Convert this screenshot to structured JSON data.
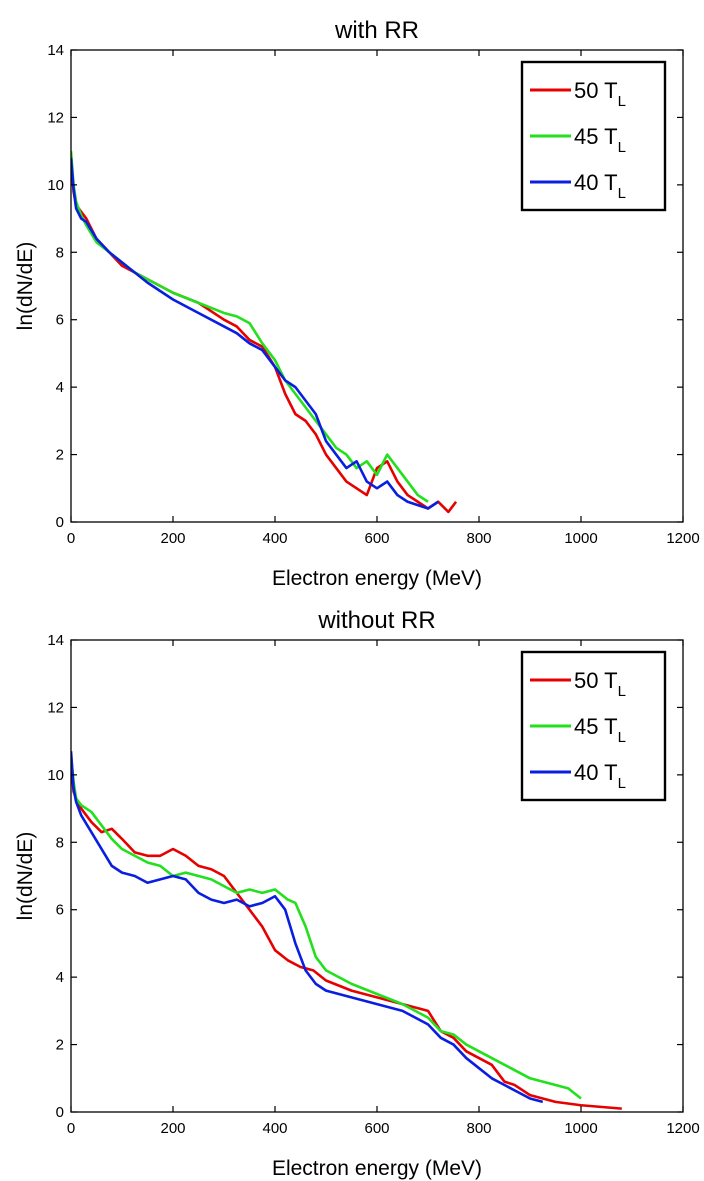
{
  "chart_data": [
    {
      "type": "line",
      "title": "with RR",
      "xlabel": "Electron energy (MeV)",
      "ylabel": "ln(dN/dE)",
      "xlim": [
        0,
        1200
      ],
      "ylim": [
        0,
        14
      ],
      "xticks": [
        "0",
        "200",
        "400",
        "600",
        "800",
        "1000",
        "1200"
      ],
      "yticks": [
        "0",
        "2",
        "4",
        "6",
        "8",
        "10",
        "12",
        "14"
      ],
      "grid": false,
      "legend_position": "top-right",
      "series": [
        {
          "name_main": "50 T",
          "name_sub": "L",
          "color": "#e60000",
          "x": [
            0,
            5,
            10,
            20,
            30,
            50,
            75,
            100,
            125,
            150,
            200,
            250,
            300,
            325,
            350,
            375,
            400,
            420,
            440,
            460,
            480,
            500,
            520,
            540,
            560,
            580,
            600,
            620,
            640,
            660,
            680,
            700,
            720,
            740,
            755
          ],
          "y": [
            10.8,
            9.8,
            9.4,
            9.2,
            9.0,
            8.4,
            8.0,
            7.6,
            7.4,
            7.2,
            6.8,
            6.5,
            6.0,
            5.8,
            5.4,
            5.2,
            4.6,
            3.8,
            3.2,
            3.0,
            2.6,
            2.0,
            1.6,
            1.2,
            1.0,
            0.8,
            1.6,
            1.8,
            1.2,
            0.8,
            0.6,
            0.4,
            0.6,
            0.3,
            0.6
          ]
        },
        {
          "name_main": "45 T",
          "name_sub": "L",
          "color": "#22e01e",
          "x": [
            0,
            5,
            10,
            20,
            30,
            50,
            75,
            100,
            125,
            150,
            200,
            250,
            300,
            325,
            350,
            375,
            400,
            420,
            440,
            460,
            480,
            500,
            520,
            540,
            560,
            580,
            600,
            620,
            640,
            660,
            680,
            700
          ],
          "y": [
            11.0,
            10.0,
            9.5,
            9.1,
            8.8,
            8.3,
            8.0,
            7.7,
            7.4,
            7.2,
            6.8,
            6.5,
            6.2,
            6.1,
            5.9,
            5.3,
            4.8,
            4.2,
            3.8,
            3.4,
            3.0,
            2.6,
            2.2,
            2.0,
            1.6,
            1.8,
            1.4,
            2.0,
            1.6,
            1.2,
            0.8,
            0.6
          ]
        },
        {
          "name_main": "40 T",
          "name_sub": "L",
          "color": "#0a1ee0",
          "x": [
            0,
            5,
            10,
            20,
            30,
            50,
            75,
            100,
            125,
            150,
            200,
            250,
            300,
            325,
            350,
            375,
            400,
            420,
            440,
            460,
            480,
            500,
            520,
            540,
            560,
            580,
            600,
            620,
            640,
            660,
            680,
            700,
            720
          ],
          "y": [
            10.8,
            9.9,
            9.3,
            9.0,
            8.9,
            8.4,
            8.0,
            7.7,
            7.4,
            7.1,
            6.6,
            6.2,
            5.8,
            5.6,
            5.3,
            5.1,
            4.6,
            4.2,
            4.0,
            3.6,
            3.2,
            2.4,
            2.0,
            1.6,
            1.8,
            1.2,
            1.0,
            1.2,
            0.8,
            0.6,
            0.5,
            0.4,
            0.6
          ]
        }
      ]
    },
    {
      "type": "line",
      "title": "without RR",
      "xlabel": "Electron energy (MeV)",
      "ylabel": "ln(dN/dE)",
      "xlim": [
        0,
        1200
      ],
      "ylim": [
        0,
        14
      ],
      "xticks": [
        "0",
        "200",
        "400",
        "600",
        "800",
        "1000",
        "1200"
      ],
      "yticks": [
        "0",
        "2",
        "4",
        "6",
        "8",
        "10",
        "12",
        "14"
      ],
      "grid": false,
      "legend_position": "top-right",
      "series": [
        {
          "name_main": "50 T",
          "name_sub": "L",
          "color": "#e60000",
          "x": [
            0,
            5,
            10,
            20,
            40,
            60,
            80,
            100,
            125,
            150,
            175,
            200,
            225,
            250,
            275,
            300,
            325,
            350,
            375,
            400,
            425,
            450,
            475,
            500,
            550,
            600,
            650,
            700,
            725,
            750,
            775,
            800,
            825,
            850,
            870,
            900,
            950,
            1000,
            1080
          ],
          "y": [
            10.4,
            9.5,
            9.3,
            9.0,
            8.6,
            8.3,
            8.4,
            8.1,
            7.7,
            7.6,
            7.6,
            7.8,
            7.6,
            7.3,
            7.2,
            7.0,
            6.5,
            6.0,
            5.5,
            4.8,
            4.5,
            4.3,
            4.2,
            3.9,
            3.6,
            3.4,
            3.2,
            3.0,
            2.4,
            2.2,
            1.8,
            1.6,
            1.4,
            0.9,
            0.8,
            0.5,
            0.3,
            0.2,
            0.1
          ]
        },
        {
          "name_main": "45 T",
          "name_sub": "L",
          "color": "#22e01e",
          "x": [
            0,
            5,
            10,
            20,
            40,
            60,
            80,
            100,
            125,
            150,
            175,
            200,
            225,
            250,
            275,
            300,
            325,
            350,
            375,
            400,
            425,
            440,
            460,
            480,
            500,
            550,
            600,
            650,
            700,
            725,
            750,
            775,
            800,
            825,
            850,
            875,
            900,
            925,
            950,
            975,
            1000
          ],
          "y": [
            10.6,
            9.8,
            9.3,
            9.1,
            8.9,
            8.5,
            8.1,
            7.8,
            7.6,
            7.4,
            7.3,
            7.0,
            7.1,
            7.0,
            6.9,
            6.7,
            6.5,
            6.6,
            6.5,
            6.6,
            6.3,
            6.2,
            5.5,
            4.6,
            4.2,
            3.8,
            3.5,
            3.2,
            2.8,
            2.4,
            2.3,
            2.0,
            1.8,
            1.6,
            1.4,
            1.2,
            1.0,
            0.9,
            0.8,
            0.7,
            0.4
          ]
        },
        {
          "name_main": "40 T",
          "name_sub": "L",
          "color": "#0a1ee0",
          "x": [
            0,
            5,
            10,
            20,
            40,
            60,
            80,
            100,
            125,
            150,
            175,
            200,
            225,
            250,
            275,
            300,
            325,
            350,
            375,
            400,
            410,
            420,
            440,
            460,
            480,
            500,
            550,
            600,
            650,
            700,
            725,
            750,
            775,
            800,
            825,
            850,
            875,
            900,
            925
          ],
          "y": [
            10.7,
            9.6,
            9.2,
            8.8,
            8.3,
            7.8,
            7.3,
            7.1,
            7.0,
            6.8,
            6.9,
            7.0,
            6.9,
            6.5,
            6.3,
            6.2,
            6.3,
            6.1,
            6.2,
            6.4,
            6.2,
            6.0,
            5.0,
            4.2,
            3.8,
            3.6,
            3.4,
            3.2,
            3.0,
            2.6,
            2.2,
            2.0,
            1.6,
            1.3,
            1.0,
            0.8,
            0.6,
            0.4,
            0.3
          ]
        }
      ]
    }
  ]
}
